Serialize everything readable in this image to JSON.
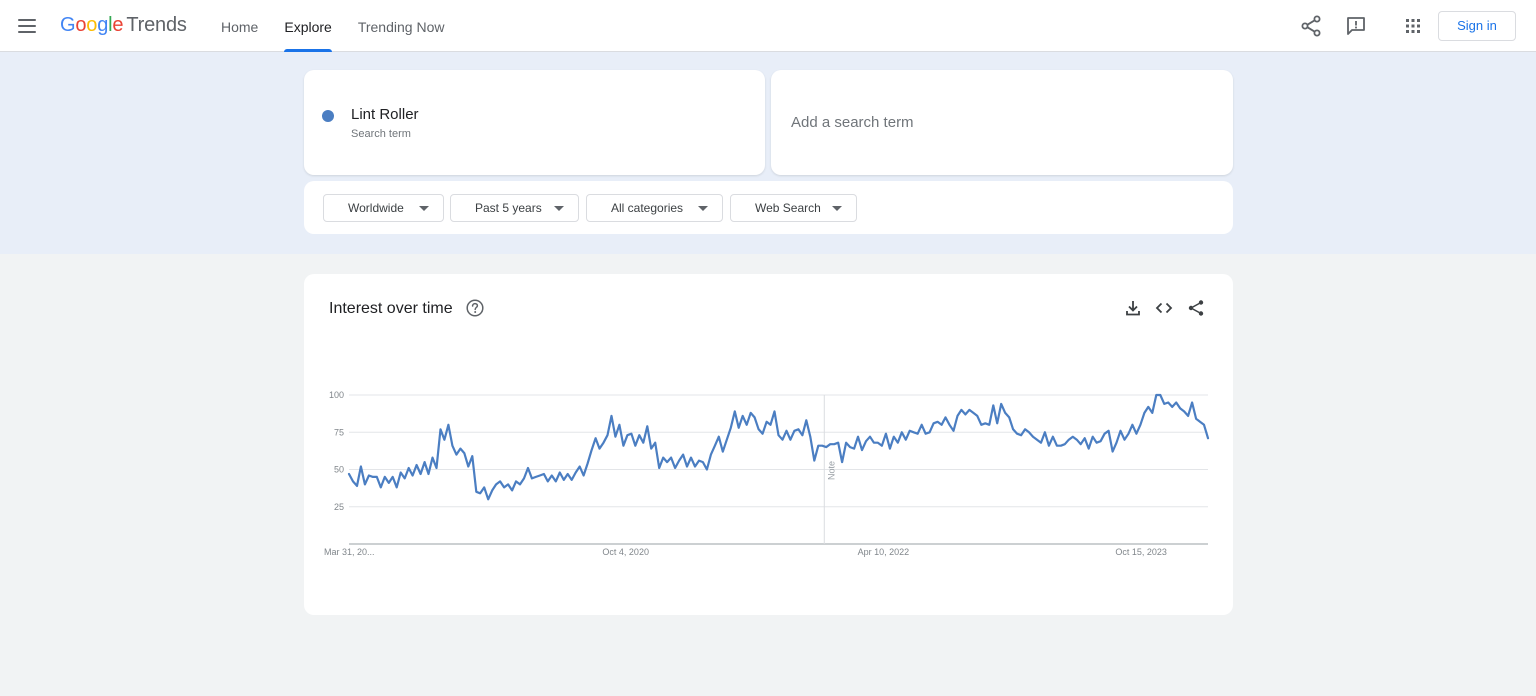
{
  "header": {
    "logo_google": "Google",
    "logo_trends": "Trends",
    "nav": [
      {
        "label": "Home",
        "active": false
      },
      {
        "label": "Explore",
        "active": true
      },
      {
        "label": "Trending Now",
        "active": false
      }
    ],
    "icons": [
      "menu-icon",
      "share-icon",
      "feedback-icon",
      "apps-grid-icon"
    ],
    "sign_in_label": "Sign in"
  },
  "search": {
    "term": {
      "name": "Lint Roller",
      "subtitle": "Search term",
      "color": "#4b7ec2"
    },
    "add_placeholder": "Add a search term",
    "filters": [
      {
        "label": "Worldwide"
      },
      {
        "label": "Past 5 years"
      },
      {
        "label": "All categories"
      },
      {
        "label": "Web Search"
      }
    ]
  },
  "interest_card": {
    "title": "Interest over time",
    "icons": [
      "help-icon",
      "download-icon",
      "embed-code-icon",
      "share-icon"
    ],
    "note_label": "Note"
  },
  "chart_data": {
    "type": "line",
    "title": "Interest over time",
    "xlabel": "",
    "ylabel": "",
    "ylim": [
      0,
      100
    ],
    "yticks": [
      25,
      50,
      75,
      100
    ],
    "x_tick_labels": [
      "Mar 31, 20...",
      "Oct 4, 2020",
      "Apr 10, 2022",
      "Oct 15, 2023"
    ],
    "x_range": [
      "2019-03-31",
      "2024-03-24"
    ],
    "grid": true,
    "note_date": "2022-01-01",
    "series": [
      {
        "name": "Lint Roller",
        "color": "#4b7ec2",
        "values": [
          47,
          42,
          39,
          52,
          40,
          46,
          45,
          45,
          38,
          45,
          41,
          45,
          38,
          48,
          44,
          51,
          46,
          53,
          47,
          55,
          47,
          58,
          51,
          77,
          70,
          80,
          66,
          60,
          64,
          61,
          52,
          59,
          35,
          34,
          38,
          30,
          36,
          40,
          42,
          38,
          40,
          36,
          42,
          40,
          44,
          51,
          44,
          45,
          46,
          47,
          42,
          46,
          42,
          48,
          43,
          47,
          43,
          48,
          52,
          46,
          54,
          63,
          71,
          64,
          68,
          73,
          86,
          72,
          80,
          66,
          73,
          74,
          66,
          73,
          68,
          79,
          64,
          68,
          51,
          58,
          55,
          58,
          51,
          56,
          60,
          52,
          58,
          52,
          56,
          55,
          50,
          60,
          66,
          72,
          62,
          70,
          78,
          89,
          78,
          86,
          80,
          88,
          85,
          77,
          74,
          82,
          80,
          89,
          73,
          70,
          76,
          70,
          76,
          77,
          73,
          83,
          72,
          56,
          66,
          66,
          65,
          67,
          67,
          68,
          55,
          68,
          65,
          64,
          72,
          63,
          69,
          72,
          68,
          68,
          66,
          74,
          64,
          72,
          68,
          75,
          70,
          76,
          75,
          74,
          80,
          74,
          75,
          81,
          82,
          80,
          85,
          80,
          76,
          86,
          90,
          87,
          90,
          88,
          86,
          80,
          81,
          80,
          93,
          81,
          94,
          88,
          85,
          77,
          74,
          73,
          77,
          75,
          72,
          70,
          68,
          75,
          66,
          72,
          66,
          66,
          67,
          70,
          72,
          70,
          67,
          71,
          64,
          72,
          68,
          69,
          74,
          76,
          62,
          68,
          76,
          70,
          74,
          80,
          74,
          80,
          88,
          92,
          88,
          100,
          100,
          94,
          95,
          92,
          95,
          91,
          89,
          86,
          95,
          84,
          82,
          80,
          71
        ]
      }
    ]
  }
}
